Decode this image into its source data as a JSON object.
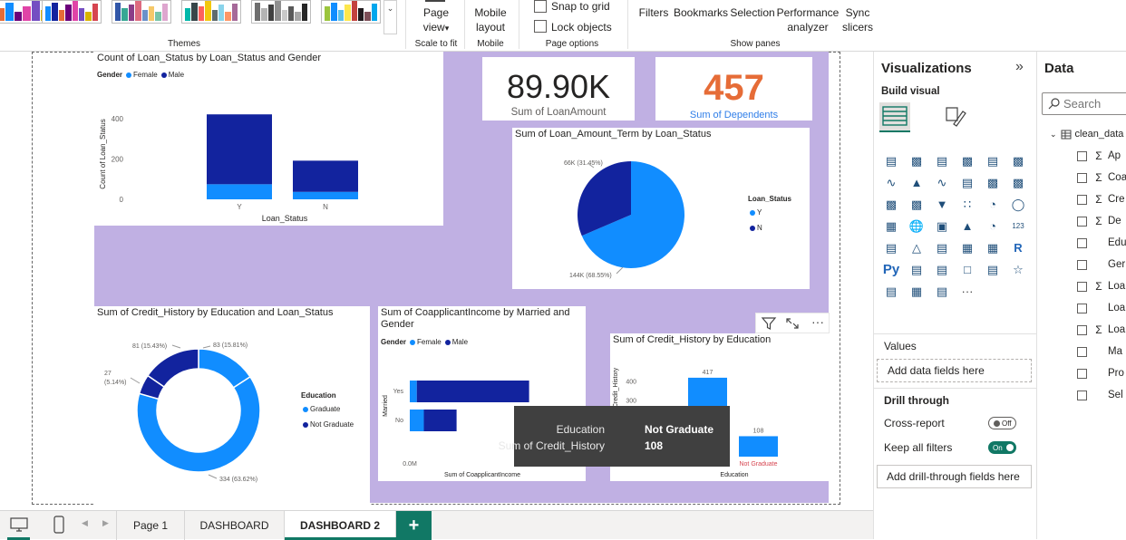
{
  "ribbon": {
    "themes_label": "Themes",
    "scale_to_fit_label": "Scale to fit",
    "page_view_label": "Page",
    "page_view_sub": "view",
    "mobile_label": "Mobile",
    "mobile_layout": "Mobile",
    "mobile_layout_sub": "layout",
    "snap_to_grid": "Snap to grid",
    "lock_objects": "Lock objects",
    "page_options_label": "Page options",
    "filters": "Filters",
    "bookmarks": "Bookmarks",
    "selection": "Selection",
    "performance": "Performance",
    "performance_sub": "analyzer",
    "sync": "Sync",
    "sync_sub": "slicers",
    "show_panes_label": "Show panes"
  },
  "kpis": {
    "loan_amount_value": "89.90K",
    "loan_amount_label": "Sum of LoanAmount",
    "dependents_value": "457",
    "dependents_label": "Sum of Dependents",
    "dependents_color": "#e66c37"
  },
  "visual_headers": {
    "filter_icon": "filter-icon",
    "focus_icon": "focus-mode-icon",
    "more_icon": "more-options-icon"
  },
  "tooltip": {
    "label1": "Education",
    "value1": "Not Graduate",
    "label2": "Sum of Credit_History",
    "value2": "108"
  },
  "pages": {
    "tabs": [
      "Page 1",
      "DASHBOARD",
      "DASHBOARD 2"
    ],
    "active": "DASHBOARD 2",
    "add_label": "+"
  },
  "viz_pane": {
    "title": "Visualizations",
    "build_visual": "Build visual",
    "values_label": "Values",
    "values_placeholder": "Add data fields here",
    "drill_through": "Drill through",
    "cross_report": "Cross-report",
    "cross_report_state": "Off",
    "keep_all_filters": "Keep all filters",
    "keep_all_filters_state": "On",
    "drill_placeholder": "Add drill-through fields here",
    "r_icon": "R",
    "py_icon": "Py",
    "more_visuals": "···"
  },
  "data_pane": {
    "title": "Data",
    "search_placeholder": "Search",
    "table": "clean_data",
    "fields": [
      {
        "name": "Ap",
        "sigma": true
      },
      {
        "name": "Coa",
        "sigma": true
      },
      {
        "name": "Cre",
        "sigma": true
      },
      {
        "name": "De",
        "sigma": true
      },
      {
        "name": "Edu",
        "sigma": false
      },
      {
        "name": "Ger",
        "sigma": false
      },
      {
        "name": "Loa",
        "sigma": true
      },
      {
        "name": "Loa",
        "sigma": false
      },
      {
        "name": "Loa",
        "sigma": true
      },
      {
        "name": "Ma",
        "sigma": false
      },
      {
        "name": "Pro",
        "sigma": false
      },
      {
        "name": "Sel",
        "sigma": false
      }
    ]
  },
  "colors": {
    "dark_blue": "#12239e",
    "light_blue": "#118dff",
    "purple_bg": "#c0b0e3",
    "accent_green": "#117865"
  },
  "chart_data": [
    {
      "type": "bar",
      "title": "Count of Loan_Status by Loan_Status and Gender",
      "legend_title": "Gender",
      "xlabel": "Loan_Status",
      "ylabel": "Count of Loan_Status",
      "categories": [
        "Y",
        "N"
      ],
      "series": [
        {
          "name": "Female",
          "values": [
            75,
            37
          ],
          "color": "#118dff"
        },
        {
          "name": "Male",
          "values": [
            347,
            155
          ],
          "color": "#12239e"
        }
      ],
      "yticks": [
        "0",
        "200",
        "400"
      ],
      "ylim": [
        0,
        450
      ],
      "stacked": true
    },
    {
      "type": "pie",
      "title": "Sum of Loan_Amount_Term by Loan_Status",
      "legend_title": "Loan_Status",
      "labels": [
        "Y",
        "N"
      ],
      "values": [
        144,
        66
      ],
      "data_labels": [
        "144K (68.55%)",
        "66K (31.45%)"
      ],
      "colors": [
        "#118dff",
        "#12239e"
      ]
    },
    {
      "type": "pie",
      "title": "Sum of Credit_History by Education and Loan_Status",
      "legend_title": "Education",
      "legend": [
        "Graduate",
        "Not Graduate"
      ],
      "donut": true,
      "slices": [
        {
          "value": 83,
          "label": "83 (15.81%)",
          "color": "#118dff"
        },
        {
          "value": 334,
          "label": "334 (63.62%)",
          "color": "#118dff"
        },
        {
          "value": 27,
          "label": "27 (5.14%)",
          "color": "#12239e"
        },
        {
          "value": 81,
          "label": "81 (15.43%)",
          "color": "#12239e"
        }
      ]
    },
    {
      "type": "bar",
      "orientation": "horizontal",
      "title": "Sum of CoapplicantIncome by Married and Gender",
      "legend_title": "Gender",
      "xlabel": "Sum of CoapplicantIncome",
      "ylabel": "Married",
      "categories": [
        "Yes",
        "No"
      ],
      "series": [
        {
          "name": "Female",
          "values": [
            0.03,
            0.06
          ],
          "color": "#118dff"
        },
        {
          "name": "Male",
          "values": [
            0.48,
            0.14
          ],
          "color": "#12239e"
        }
      ],
      "xticks": [
        "0.0M",
        "0.5"
      ],
      "xlim": [
        0,
        0.62
      ],
      "stacked": true
    },
    {
      "type": "bar",
      "title": "Sum of Credit_History by Education",
      "xlabel": "Education",
      "ylabel": "Credit_History",
      "categories": [
        "Graduate",
        "Not Graduate"
      ],
      "values": [
        417,
        108
      ],
      "data_labels": [
        "417",
        "108"
      ],
      "yticks": [
        "300",
        "400"
      ],
      "ylim": [
        0,
        450
      ],
      "color": "#118dff"
    }
  ]
}
